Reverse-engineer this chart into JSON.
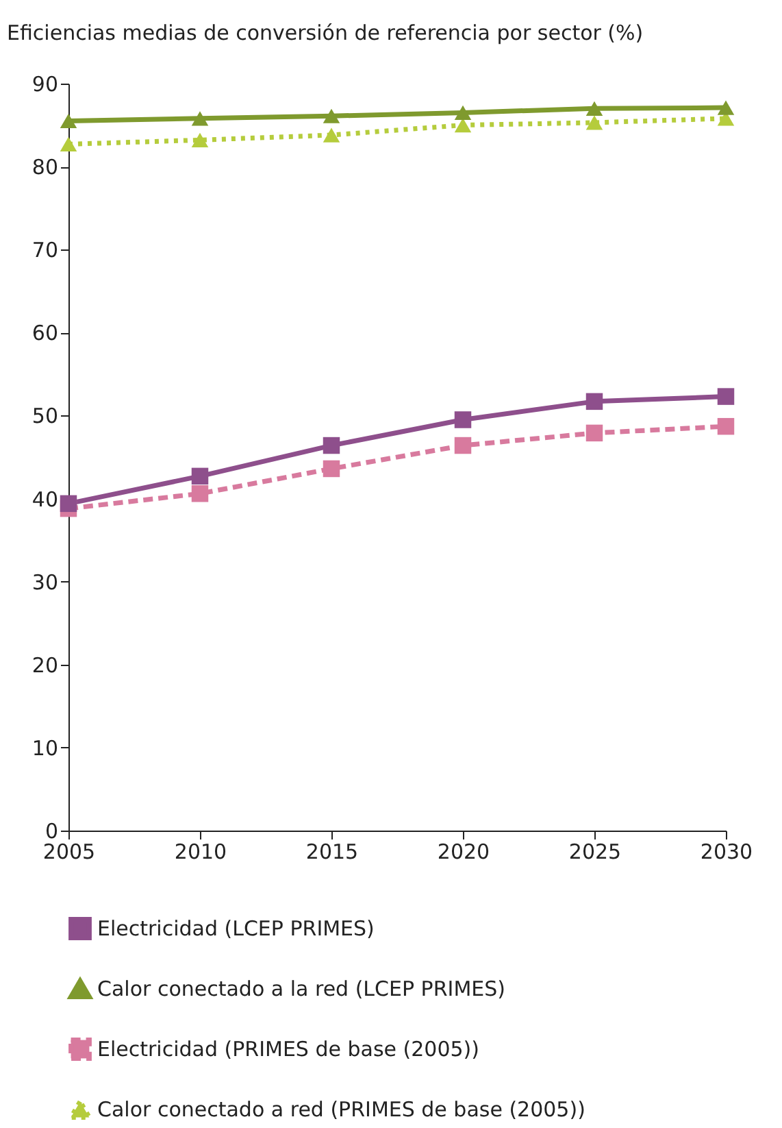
{
  "chart_data": {
    "type": "line",
    "title": "Eficiencias medias de conversión de referencia por sector (%)",
    "x": [
      2005,
      2010,
      2015,
      2020,
      2025,
      2030
    ],
    "xlim": [
      2005,
      2030
    ],
    "xticks": [
      2005,
      2010,
      2015,
      2020,
      2025,
      2030
    ],
    "ylim": [
      0,
      90
    ],
    "yticks": [
      0,
      10,
      20,
      30,
      40,
      50,
      60,
      70,
      80,
      90
    ],
    "grid": false,
    "legend": "bottom",
    "series": [
      {
        "name": "Electricidad (LCEP PRIMES)",
        "color": "#8e4f8c",
        "marker": "square",
        "line_style": "solid",
        "values": [
          39.4,
          42.7,
          46.4,
          49.5,
          51.7,
          52.3
        ]
      },
      {
        "name": "Calor conectado a la red (LCEP PRIMES)",
        "color": "#7f9a2e",
        "marker": "triangle",
        "line_style": "solid",
        "values": [
          85.5,
          85.8,
          86.1,
          86.5,
          87.0,
          87.1
        ]
      },
      {
        "name": "Electricidad (PRIMES de base (2005))",
        "color": "#d87a9e",
        "marker": "square",
        "line_style": "dashed",
        "values": [
          38.8,
          40.6,
          43.6,
          46.4,
          47.9,
          48.7
        ]
      },
      {
        "name": "Calor conectado a red (PRIMES de base (2005))",
        "color": "#b5cc3c",
        "marker": "triangle",
        "line_style": "dotted",
        "values": [
          82.7,
          83.2,
          83.8,
          85.0,
          85.3,
          85.8
        ]
      }
    ]
  }
}
